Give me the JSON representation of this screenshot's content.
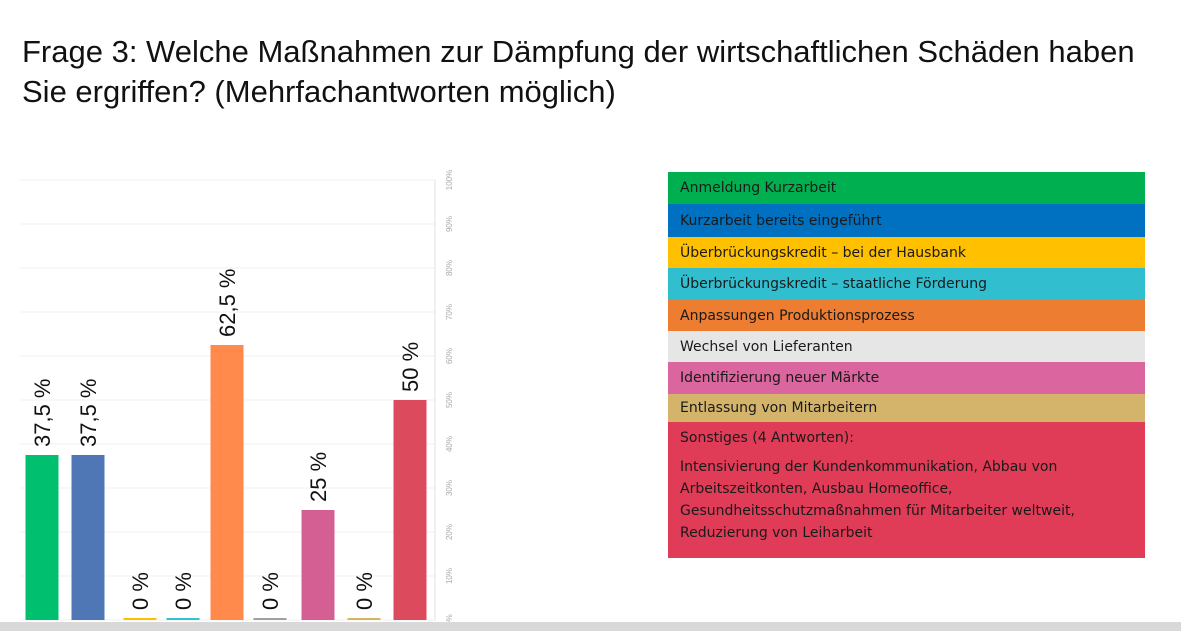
{
  "title": "Frage 3: Welche Maßnahmen zur Dämpfung der wirtschaftlichen Schäden haben Sie ergriffen? (Mehrfachantworten möglich)",
  "chart_data": {
    "type": "bar",
    "title": "Frage 3: Welche Maßnahmen zur Dämpfung der wirtschaftlichen Schäden haben Sie ergriffen? (Mehrfachantworten möglich)",
    "categories": [
      "Anmeldung Kurzarbeit",
      "Kurzarbeit bereits eingeführt",
      "Überbrückungskredit – bei der Hausbank",
      "Überbrückungskredit – staatliche Förderung",
      "Anpassungen Produktionsprozess",
      "Wechsel von Lieferanten",
      "Identifizierung neuer Märkte",
      "Entlassung von Mitarbeitern",
      "Sonstiges (4 Antworten):"
    ],
    "values": [
      37.5,
      37.5,
      0,
      0,
      62.5,
      0,
      25,
      0,
      50
    ],
    "data_labels": [
      "37,5 %",
      "37,5 %",
      "0 %",
      "0 %",
      "62,5 %",
      "0 %",
      "25 %",
      "0 %",
      "50 %"
    ],
    "colors": [
      "#00bf6f",
      "#4f77b5",
      "#ffc000",
      "#34c1d4",
      "#ff8a4c",
      "#a0a0a0",
      "#d45f93",
      "#d6b560",
      "#dc4a5e"
    ],
    "ylim": [
      0,
      100
    ],
    "yticks": [
      "0%",
      "10%",
      "20%",
      "30%",
      "40%",
      "50%",
      "60%",
      "70%",
      "80%",
      "90%",
      "100%"
    ],
    "ytick_values": [
      0,
      10,
      20,
      30,
      40,
      50,
      60,
      70,
      80,
      90,
      100
    ],
    "grid": true,
    "legend_position": "right",
    "xlabel": "",
    "ylabel": ""
  },
  "legend": {
    "items": [
      {
        "label": "Anmeldung Kurzarbeit",
        "color": "#00b050"
      },
      {
        "label": "Kurzarbeit bereits eingeführt",
        "color": "#0070c0"
      },
      {
        "label": "Überbrückungskredit – bei der Hausbank",
        "color": "#ffc000"
      },
      {
        "label": "Überbrückungskredit – staatliche Förderung",
        "color": "#31becf"
      },
      {
        "label": "Anpassungen Produktionsprozess",
        "color": "#ed7d31"
      },
      {
        "label": "Wechsel von Lieferanten",
        "color": "#e7e6e6"
      },
      {
        "label": "Identifizierung neuer Märkte",
        "color": "#db659e"
      },
      {
        "label": "Entlassung von Mitarbeitern",
        "color": "#d4b46a"
      },
      {
        "label": "Sonstiges (4 Antworten):",
        "color": "#e03b57",
        "detail": "Intensivierung der Kundenkommunikation, Abbau von Arbeitszeitkonten, Ausbau Homeoffice, Gesundheitsschutzmaßnahmen für Mitarbeiter weltweit, Reduzierung von Leiharbeit"
      }
    ]
  }
}
